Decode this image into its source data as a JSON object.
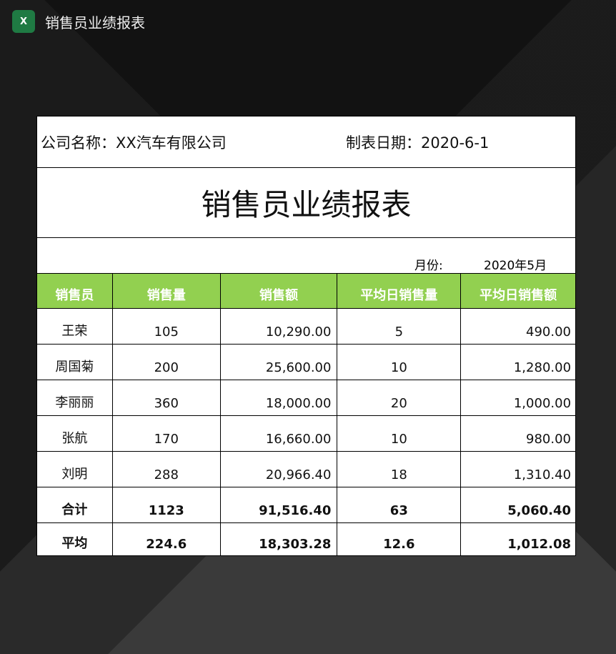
{
  "app": {
    "title": "销售员业绩报表",
    "icon": "excel-icon",
    "icon_letter": "X"
  },
  "sheet": {
    "company": "公司名称：XX汽车有限公司",
    "date": "制表日期：2020-6-1",
    "title": "销售员业绩报表",
    "month_label": "月份:",
    "month_value": "2020年5月",
    "header_color": "#92d050",
    "columns": [
      "销售员",
      "销售量",
      "销售额",
      "平均日销售量",
      "平均日销售额"
    ],
    "rows": [
      [
        "王荣",
        "105",
        "10,290.00",
        "5",
        "490.00"
      ],
      [
        "周国菊",
        "200",
        "25,600.00",
        "10",
        "1,280.00"
      ],
      [
        "李丽丽",
        "360",
        "18,000.00",
        "20",
        "1,000.00"
      ],
      [
        "张航",
        "170",
        "16,660.00",
        "10",
        "980.00"
      ],
      [
        "刘明",
        "288",
        "20,966.40",
        "18",
        "1,310.40"
      ]
    ],
    "total": [
      "合计",
      "1123",
      "91,516.40",
      "63",
      "5,060.40"
    ],
    "average": [
      "平均",
      "224.6",
      "18,303.28",
      "12.6",
      "1,012.08"
    ]
  }
}
